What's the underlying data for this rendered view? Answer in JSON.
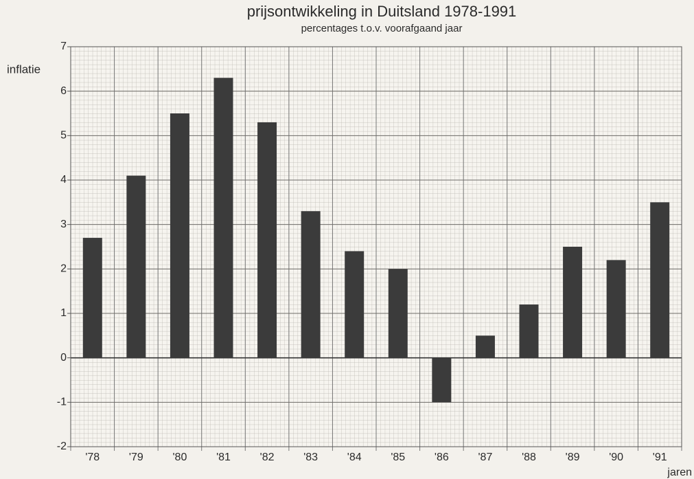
{
  "chart_data": {
    "type": "bar",
    "title": "prijsontwikkeling in Duitsland 1978-1991",
    "subtitle": "percentages t.o.v. voorafgaand jaar",
    "y_label": "inflatie",
    "x_label": "jaren",
    "categories": [
      "'78",
      "'79",
      "'80",
      "'81",
      "'82",
      "'83",
      "'84",
      "'85",
      "'86",
      "'87",
      "'88",
      "'89",
      "'90",
      "'91"
    ],
    "values": [
      2.7,
      4.1,
      5.5,
      6.3,
      5.3,
      3.3,
      2.4,
      2.0,
      -1.0,
      0.5,
      1.2,
      2.5,
      2.2,
      3.5
    ],
    "color": "#3b3b3b",
    "ylim": [
      -2,
      7
    ],
    "yticks": [
      -2,
      -1,
      0,
      1,
      2,
      3,
      4,
      5,
      6,
      7
    ],
    "grid": true
  }
}
